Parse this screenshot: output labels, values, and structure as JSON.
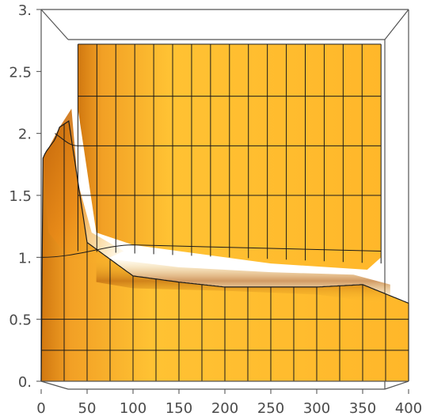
{
  "chart_data": {
    "type": "surface",
    "title": "",
    "xlabel": "",
    "ylabel": "",
    "xlim": [
      0,
      400
    ],
    "zlim": [
      0,
      3
    ],
    "x_ticks": [
      {
        "value": 0,
        "label": "0"
      },
      {
        "value": 50,
        "label": "50"
      },
      {
        "value": 100,
        "label": "100"
      },
      {
        "value": 150,
        "label": "150"
      },
      {
        "value": 200,
        "label": "200"
      },
      {
        "value": 250,
        "label": "250"
      },
      {
        "value": 300,
        "label": "300"
      },
      {
        "value": 350,
        "label": "350"
      },
      {
        "value": 400,
        "label": "400"
      }
    ],
    "z_ticks": [
      {
        "value": 0,
        "label": "0."
      },
      {
        "value": 0.5,
        "label": "0.5"
      },
      {
        "value": 1,
        "label": "1."
      },
      {
        "value": 1.5,
        "label": "1.5"
      },
      {
        "value": 2,
        "label": "2."
      },
      {
        "value": 2.5,
        "label": "2.5"
      },
      {
        "value": 3,
        "label": "3."
      }
    ],
    "front_profile": {
      "x": [
        0,
        2,
        5,
        10,
        15,
        20,
        30,
        50,
        100,
        150,
        200,
        250,
        300,
        350,
        400
      ],
      "z": [
        0.0,
        1.8,
        1.85,
        1.9,
        1.95,
        2.05,
        2.1,
        1.12,
        0.85,
        0.8,
        0.76,
        0.76,
        0.76,
        0.78,
        0.63
      ]
    },
    "back_plateau_z": 2.72,
    "colors": {
      "surface": "#F5A623",
      "surface_light": "#FFC733",
      "shadow": "#C66A10",
      "mesh": "#1a1a1a",
      "box": "#555555",
      "axis_text": "#4a4a4a"
    }
  }
}
